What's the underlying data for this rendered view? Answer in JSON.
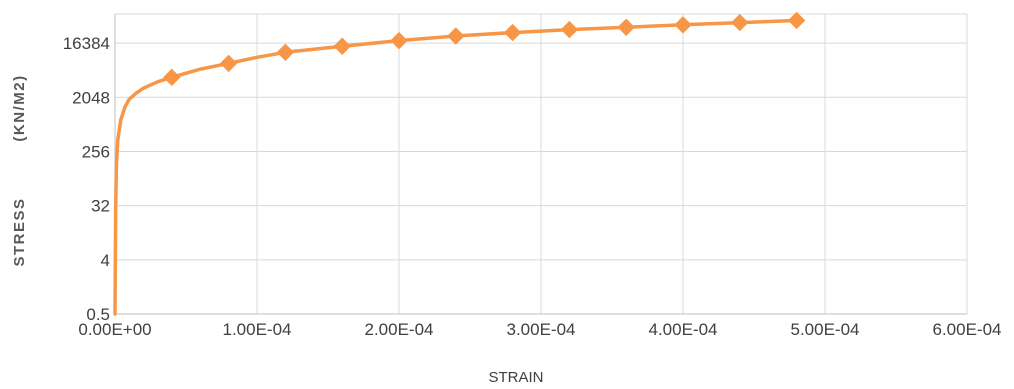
{
  "chart_data": {
    "type": "line",
    "title": "",
    "xlabel": "STRAIN",
    "ylabel_left": "STRESS",
    "ylabel_right": "(KN/M2)",
    "xlim": [
      0,
      0.0006
    ],
    "ylim": [
      0.5,
      50000
    ],
    "y_scale": "log2",
    "x_ticks": [
      0,
      0.0001,
      0.0002,
      0.0003,
      0.0004,
      0.0005,
      0.0006
    ],
    "x_tick_labels": [
      "0.00E+00",
      "1.00E-04",
      "2.00E-04",
      "3.00E-04",
      "4.00E-04",
      "5.00E-04",
      "6.00E-04"
    ],
    "y_ticks": [
      0.5,
      4,
      32,
      256,
      2048,
      16384
    ],
    "y_tick_labels": [
      "0.5",
      "4",
      "32",
      "256",
      "2048",
      "16384"
    ],
    "grid": true,
    "color": "#F79646",
    "curve_x": [
      0,
      5e-07,
      1e-06,
      2e-06,
      4e-06,
      7e-06,
      1e-05,
      1.5e-05,
      2e-05,
      3e-05,
      4e-05,
      6e-05,
      8e-05,
      0.0001,
      0.00012,
      0.00016,
      0.0002,
      0.00024,
      0.00028,
      0.00032,
      0.00036,
      0.0004,
      0.00044,
      0.00048
    ],
    "curve_y": [
      0.5,
      30,
      150,
      400,
      850,
      1400,
      1900,
      2400,
      2900,
      3700,
      4400,
      6000,
      7500,
      9500,
      11500,
      14500,
      18000,
      21500,
      24500,
      27500,
      30000,
      33000,
      36000,
      39000
    ],
    "series": [
      {
        "x": [
          4e-05,
          8e-05,
          0.00012,
          0.00016,
          0.0002,
          0.00024,
          0.00028,
          0.00032,
          0.00036,
          0.0004,
          0.00044,
          0.00048
        ],
        "y": [
          4400,
          7500,
          11500,
          14500,
          18000,
          21500,
          24500,
          27500,
          30000,
          33000,
          36000,
          39000
        ]
      }
    ]
  }
}
